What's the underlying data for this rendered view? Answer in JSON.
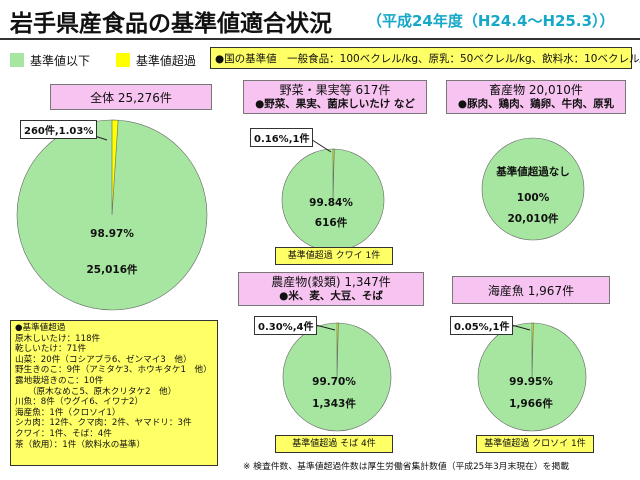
{
  "title": "岩手県産食品の基準値適合状況",
  "subtitle": "（平成24年度（H24.4～H25.3））",
  "legend": [
    {
      "label": "基準値以下",
      "color": "#a6e6a0"
    },
    {
      "label": "基準値超過",
      "color": "#ffff00"
    }
  ],
  "standard_note": "●国の基準値　一般食品：100ベクレル/kg、原乳：50ベクレル/kg、飲料水：10ベクレル/kg",
  "panels": {
    "total": {
      "title": "全体 25,276件"
    },
    "vegetables": {
      "title": "野菜・果実等 617件",
      "sub": "●野菜、果実、菌床しいたけ など",
      "badge": "基準値超過 クワイ 1件"
    },
    "livestock": {
      "title": "畜産物 20,010件",
      "sub": "●豚肉、鶏肉、鶏卵、牛肉、原乳",
      "inner_title": "基準値超過なし"
    },
    "grain": {
      "title": "農産物(穀類) 1,347件",
      "sub": "●米、麦、大豆、そば",
      "badge": "基準値超過 そば 4件"
    },
    "fish": {
      "title": "海産魚 1,967件",
      "badge": "基準値超過 クロソイ 1件"
    }
  },
  "chart_data": [
    {
      "type": "pie",
      "title": "全体 25,276件",
      "categories": [
        "基準値以下",
        "基準値超過"
      ],
      "values": [
        25016,
        260
      ],
      "labels": {
        "under_pct": "98.97%",
        "under_count": "25,016件",
        "over": "260件,1.03%"
      }
    },
    {
      "type": "pie",
      "title": "野菜・果実等 617件",
      "categories": [
        "基準値以下",
        "基準値超過"
      ],
      "values": [
        616,
        1
      ],
      "labels": {
        "under_pct": "99.84%",
        "under_count": "616件",
        "over": "0.16%,1件"
      }
    },
    {
      "type": "pie",
      "title": "畜産物 20,010件",
      "categories": [
        "基準値以下",
        "基準値超過"
      ],
      "values": [
        20010,
        0
      ],
      "labels": {
        "under_pct": "100%",
        "under_count": "20,010件"
      }
    },
    {
      "type": "pie",
      "title": "農産物(穀類) 1,347件",
      "categories": [
        "基準値以下",
        "基準値超過"
      ],
      "values": [
        1343,
        4
      ],
      "labels": {
        "under_pct": "99.70%",
        "under_count": "1,343件",
        "over": "0.30%,4件"
      }
    },
    {
      "type": "pie",
      "title": "海産魚 1,967件",
      "categories": [
        "基準値以下",
        "基準値超過"
      ],
      "values": [
        1966,
        1
      ],
      "labels": {
        "under_pct": "99.95%",
        "under_count": "1,966件",
        "over": "0.05%,1件"
      }
    }
  ],
  "details": [
    "●基準値超過",
    "原木しいたけ：118件",
    "乾しいたけ：71件",
    "山菜：20件（コシアブラ6、ゼンマイ3　他）",
    "野生きのこ：9件（アミタケ3、ホウキタケ1　他）",
    "露地栽培きのこ：10件",
    "　　（原木なめこ5、原木クリタケ2　他）",
    "川魚：8件（ウグイ6、イワナ2）",
    "海産魚：1件（クロソイ1）",
    "シカ肉：12件、クマ肉：2件、ヤマドリ：3件",
    "クワイ：1件、そば：4件",
    "茶（飲用）：1件（飲料水の基準）"
  ],
  "footnote": "※ 検査件数、基準値超過件数は厚生労働省集計数値（平成25年3月末現在）を掲載"
}
